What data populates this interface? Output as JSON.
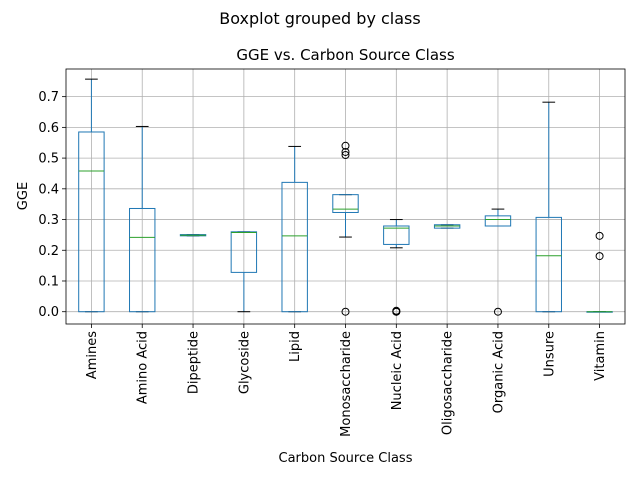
{
  "chart_data": {
    "type": "box",
    "suptitle": "Boxplot grouped by class",
    "title": "GGE vs. Carbon Source Class",
    "xlabel": "Carbon Source Class",
    "ylabel": "GGE",
    "ylim": [
      -0.04,
      0.79
    ],
    "yticks": [
      0.0,
      0.1,
      0.2,
      0.3,
      0.4,
      0.5,
      0.6,
      0.7
    ],
    "yticklabels": [
      "0.0",
      "0.1",
      "0.2",
      "0.3",
      "0.4",
      "0.5",
      "0.6",
      "0.7"
    ],
    "grid": true,
    "box_color": "#1f77b4",
    "median_color": "#2ca02c",
    "categories": [
      "Amines",
      "Amino Acid",
      "Dipeptide",
      "Glycoside",
      "Lipid",
      "Monosaccharide",
      "Nucleic Acid",
      "Oligosaccharide",
      "Organic Acid",
      "Unsure",
      "Vitamin"
    ],
    "boxes": [
      {
        "whislo": 0.0,
        "q1": 0.0,
        "med": 0.458,
        "q3": 0.585,
        "whishi": 0.757,
        "fliers": []
      },
      {
        "whislo": 0.0,
        "q1": 0.0,
        "med": 0.242,
        "q3": 0.336,
        "whishi": 0.603,
        "fliers": []
      },
      {
        "whislo": 0.247,
        "q1": 0.247,
        "med": 0.249,
        "q3": 0.251,
        "whishi": 0.251,
        "fliers": []
      },
      {
        "whislo": 0.0,
        "q1": 0.128,
        "med": 0.258,
        "q3": 0.26,
        "whishi": 0.26,
        "fliers": []
      },
      {
        "whislo": 0.0,
        "q1": 0.0,
        "med": 0.247,
        "q3": 0.421,
        "whishi": 0.538,
        "fliers": []
      },
      {
        "whislo": 0.243,
        "q1": 0.323,
        "med": 0.334,
        "q3": 0.381,
        "whishi": 0.381,
        "fliers": [
          0.0,
          0.51,
          0.52,
          0.54
        ]
      },
      {
        "whislo": 0.208,
        "q1": 0.219,
        "med": 0.272,
        "q3": 0.279,
        "whishi": 0.3,
        "fliers": [
          0.0,
          0.0,
          0.003
        ]
      },
      {
        "whislo": 0.272,
        "q1": 0.272,
        "med": 0.279,
        "q3": 0.283,
        "whishi": 0.283,
        "fliers": []
      },
      {
        "whislo": 0.279,
        "q1": 0.279,
        "med": 0.3,
        "q3": 0.312,
        "whishi": 0.334,
        "fliers": [
          0.0
        ]
      },
      {
        "whislo": 0.0,
        "q1": 0.0,
        "med": 0.182,
        "q3": 0.307,
        "whishi": 0.682,
        "fliers": []
      },
      {
        "whislo": 0.0,
        "q1": 0.0,
        "med": 0.0,
        "q3": 0.0,
        "whishi": 0.0,
        "fliers": [
          0.181,
          0.247
        ]
      }
    ]
  }
}
